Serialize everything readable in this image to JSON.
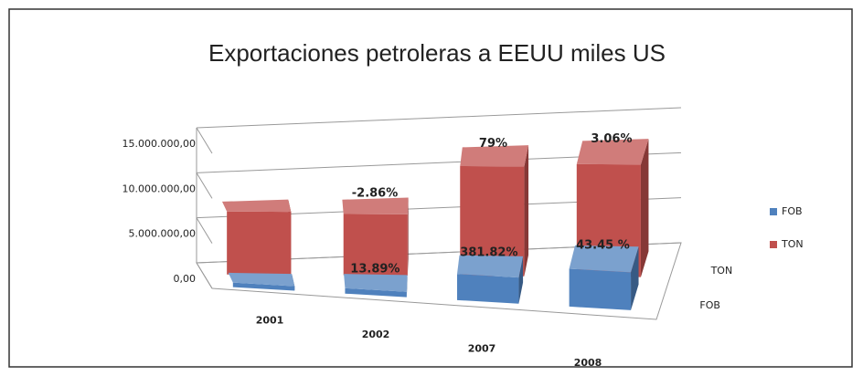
{
  "chart_data": {
    "type": "bar3d",
    "title": "Exportaciones petroleras a EEUU miles US",
    "categories": [
      "2001",
      "2002",
      "2007",
      "2008"
    ],
    "series": [
      {
        "name": "FOB",
        "color": "#4f81bd",
        "values": [
          500000,
          600000,
          2900000,
          4200000
        ],
        "pct_labels": [
          null,
          "13.89%",
          "381.82%",
          "43.45 %"
        ]
      },
      {
        "name": "TON",
        "color": "#c0504d",
        "values": [
          7000000,
          6800000,
          12200000,
          12500000
        ],
        "pct_labels": [
          null,
          "-2.86%",
          "79%",
          "3.06%"
        ]
      }
    ],
    "ylim": [
      0,
      15000000
    ],
    "yticks": [
      {
        "value": 0,
        "label": "0,00"
      },
      {
        "value": 5000000,
        "label": "5.000.000,00"
      },
      {
        "value": 10000000,
        "label": "10.000.000,00"
      },
      {
        "value": 15000000,
        "label": "15.000.000,00"
      }
    ],
    "grid": true,
    "legend": "right"
  }
}
